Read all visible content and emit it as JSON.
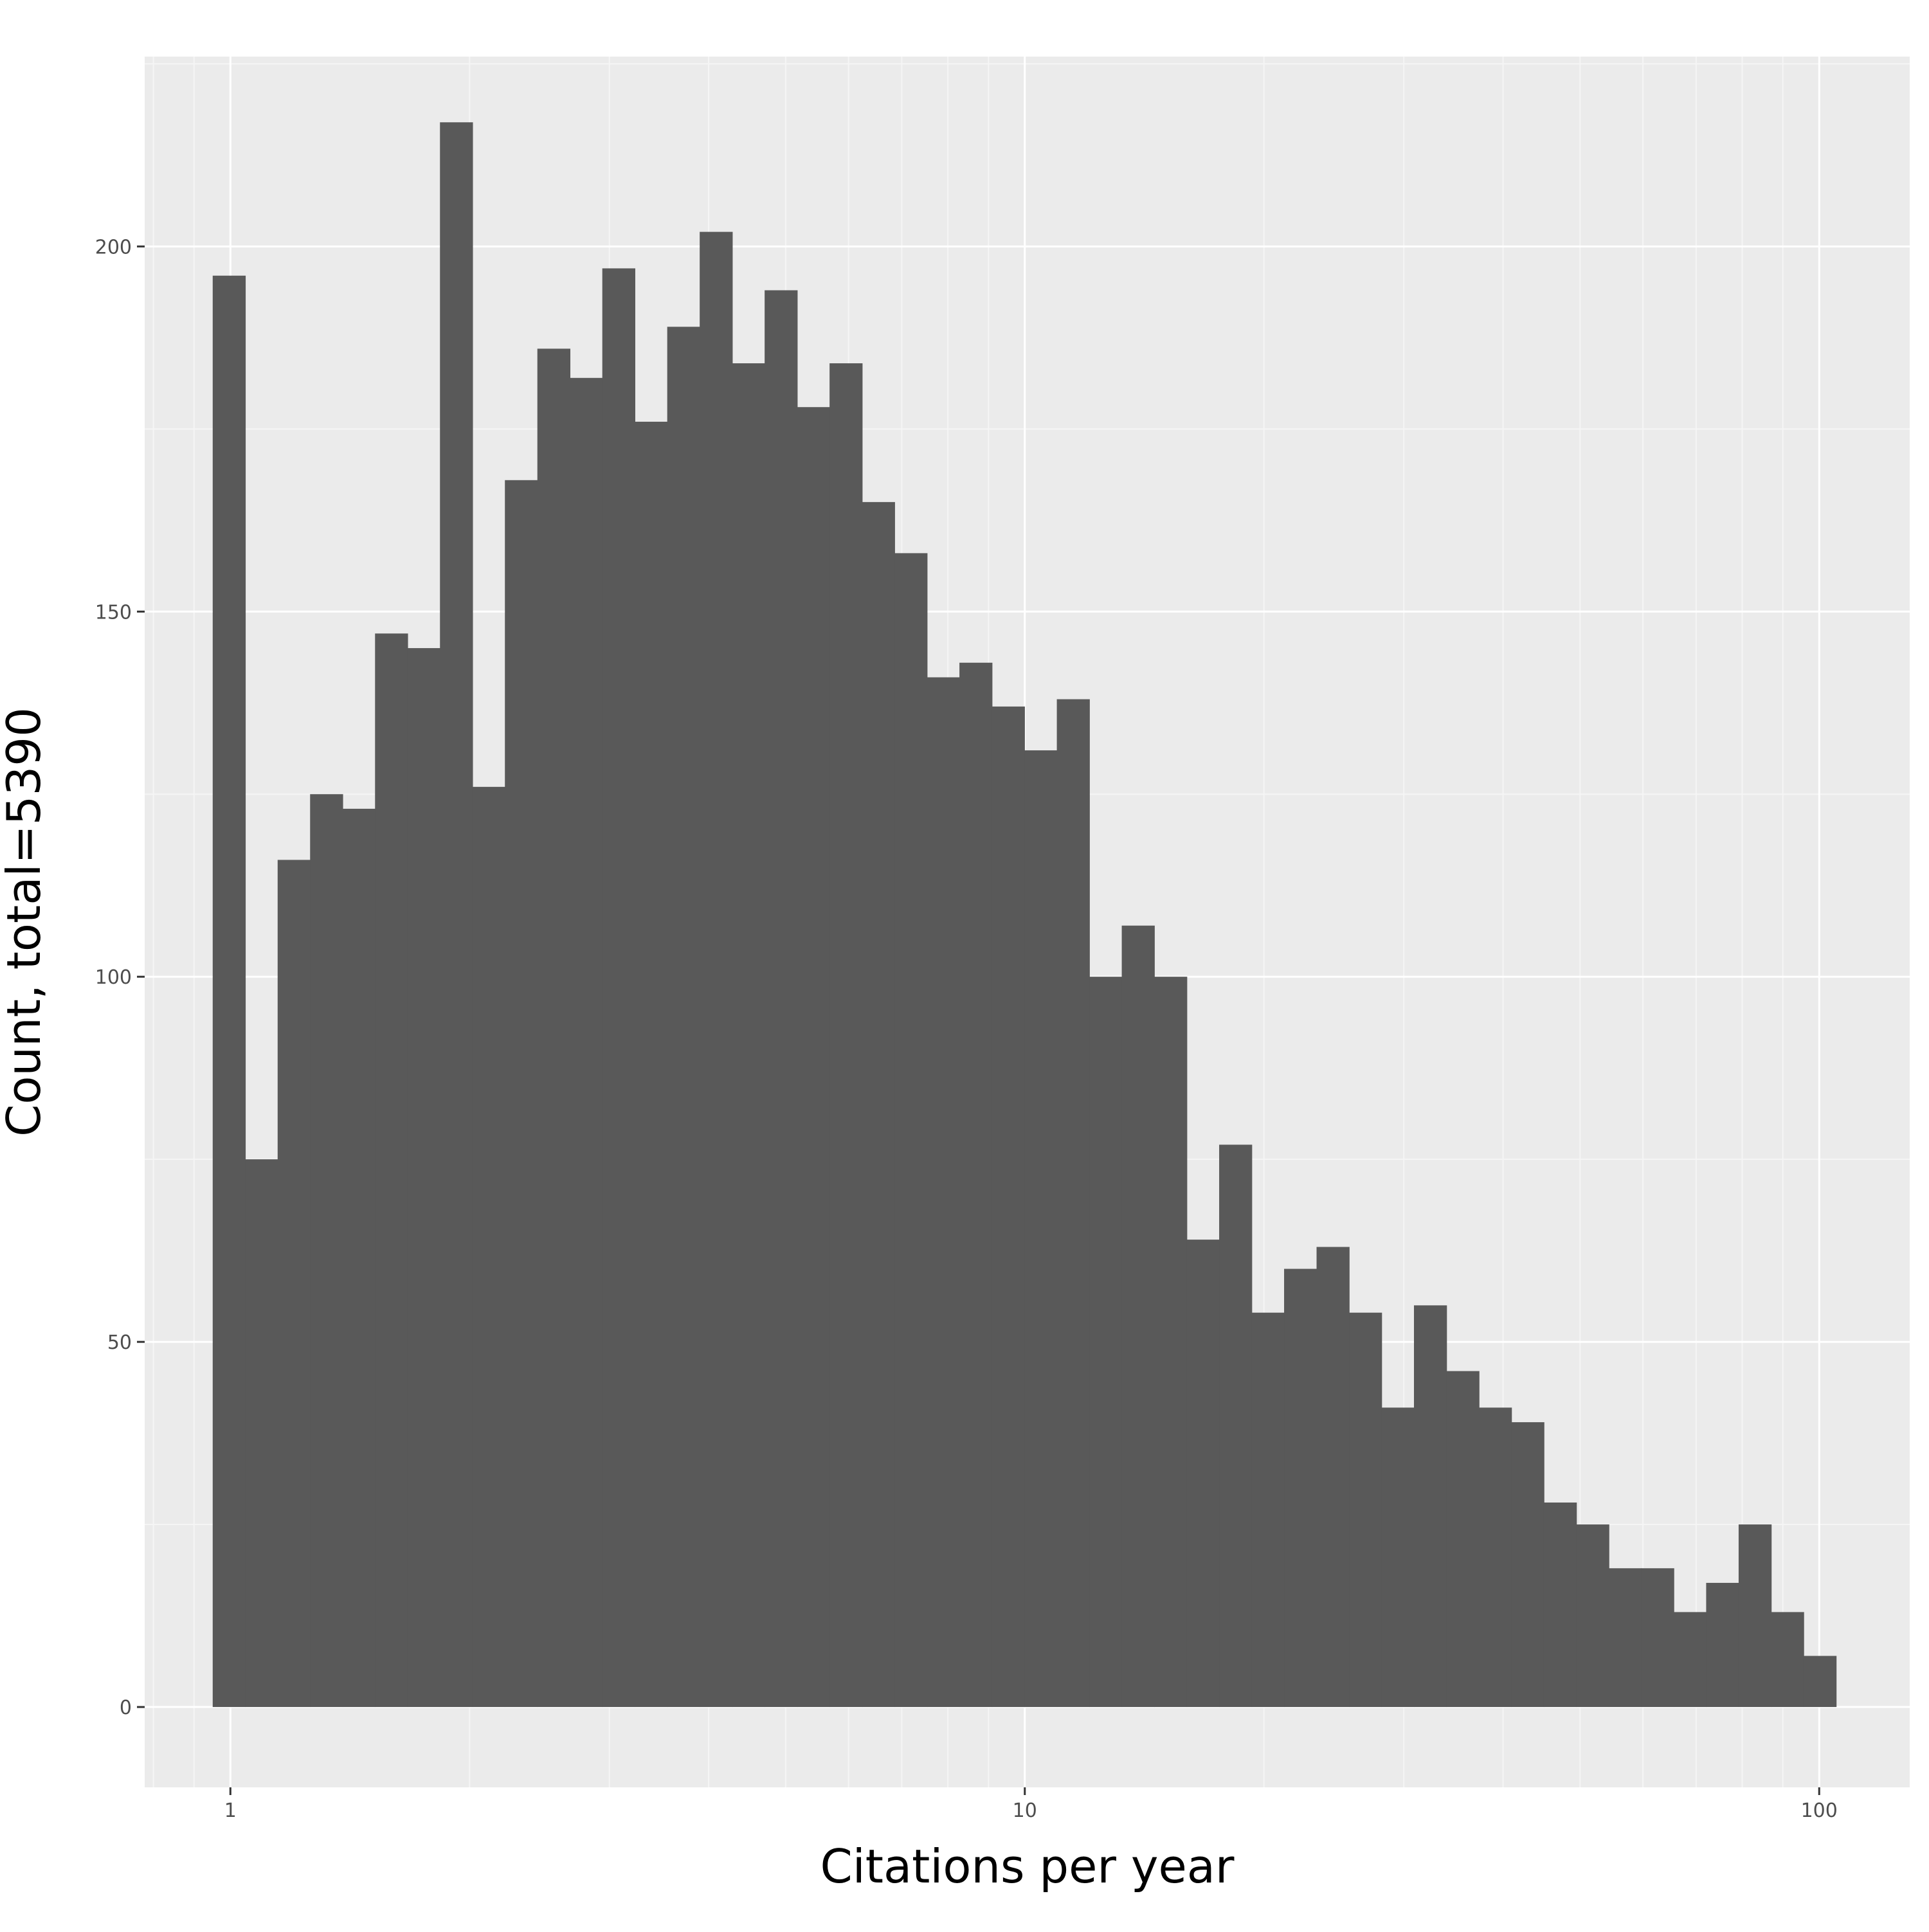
{
  "chart_data": {
    "type": "bar",
    "subtype": "histogram",
    "title": "",
    "xlabel": "Citations per year",
    "ylabel": "Count, total=5390",
    "x_scale": "log10",
    "xlim": [
      0.78,
      130
    ],
    "ylim": [
      -11,
      226
    ],
    "x_ticks": [
      1,
      10,
      100
    ],
    "x_tick_labels": [
      "1",
      "10",
      "100"
    ],
    "y_ticks": [
      0,
      50,
      100,
      150,
      200
    ],
    "y_tick_labels": [
      "0",
      "50",
      "100",
      "150",
      "200"
    ],
    "grid": true,
    "legend": "none",
    "bin_range": [
      0.95,
      105
    ],
    "values": [
      196,
      75,
      116,
      125,
      123,
      147,
      145,
      217,
      126,
      168,
      186,
      182,
      197,
      176,
      189,
      202,
      184,
      194,
      178,
      184,
      165,
      158,
      141,
      143,
      137,
      131,
      138,
      100,
      107,
      100,
      64,
      77,
      54,
      60,
      63,
      54,
      41,
      55,
      46,
      41,
      39,
      28,
      25,
      19,
      19,
      13,
      17,
      25,
      13,
      7
    ],
    "colors": {
      "panel": "#ebebeb",
      "grid_major": "#ffffff",
      "grid_minor": "#f5f5f5",
      "bar": "#595959",
      "tick_text": "#4d4d4d",
      "axis_title": "#000000"
    }
  }
}
